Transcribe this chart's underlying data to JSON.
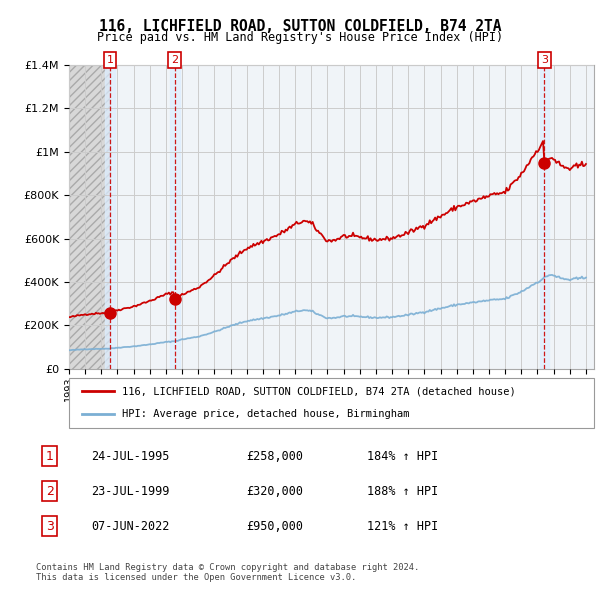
{
  "title": "116, LICHFIELD ROAD, SUTTON COLDFIELD, B74 2TA",
  "subtitle": "Price paid vs. HM Land Registry's House Price Index (HPI)",
  "legend_label_property": "116, LICHFIELD ROAD, SUTTON COLDFIELD, B74 2TA (detached house)",
  "legend_label_hpi": "HPI: Average price, detached house, Birmingham",
  "footer1": "Contains HM Land Registry data © Crown copyright and database right 2024.",
  "footer2": "This data is licensed under the Open Government Licence v3.0.",
  "property_color": "#cc0000",
  "hpi_color": "#7bafd4",
  "vline_color": "#cc0000",
  "sales": [
    {
      "date": 1995.55,
      "price": 258000,
      "label": "1"
    },
    {
      "date": 1999.55,
      "price": 320000,
      "label": "2"
    },
    {
      "date": 2022.43,
      "price": 950000,
      "label": "3"
    }
  ],
  "sale_annotations": [
    {
      "num": "1",
      "date": "24-JUL-1995",
      "price": "£258,000",
      "hpi": "184% ↑ HPI"
    },
    {
      "num": "2",
      "date": "23-JUL-1999",
      "price": "£320,000",
      "hpi": "188% ↑ HPI"
    },
    {
      "num": "3",
      "date": "07-JUN-2022",
      "price": "£950,000",
      "hpi": "121% ↑ HPI"
    }
  ],
  "ylim": [
    0,
    1400000
  ],
  "yticks": [
    0,
    200000,
    400000,
    600000,
    800000,
    1000000,
    1200000,
    1400000
  ],
  "xlim_start": 1993.0,
  "xlim_end": 2025.5
}
